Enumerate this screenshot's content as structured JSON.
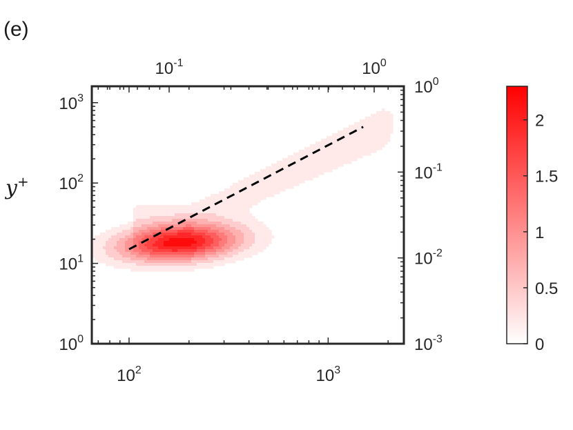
{
  "panel_label": "(e)",
  "chart_data": {
    "type": "heatmap",
    "subtype": "filled-contour",
    "ylabel": "y",
    "ylabel_superscript": "+",
    "x_scale": "log",
    "y_scale": "log",
    "xlim": [
      65,
      2400
    ],
    "ylim": [
      1,
      1600
    ],
    "x_ticks": [
      {
        "value": 100,
        "base": "10",
        "exp": "2"
      },
      {
        "value": 1000,
        "base": "10",
        "exp": "3"
      }
    ],
    "y_ticks": [
      {
        "value": 1,
        "base": "10",
        "exp": "0"
      },
      {
        "value": 10,
        "base": "10",
        "exp": "1"
      },
      {
        "value": 100,
        "base": "10",
        "exp": "2"
      },
      {
        "value": 1000,
        "base": "10",
        "exp": "3"
      }
    ],
    "top_axis": {
      "scale": "log",
      "ticks": [
        {
          "value": 0.1,
          "base": "10",
          "exp": "-1"
        },
        {
          "value": 1,
          "base": "10",
          "exp": "0"
        }
      ]
    },
    "right_axis": {
      "scale": "log",
      "ticks": [
        {
          "value": 0.001,
          "base": "10",
          "exp": "-3"
        },
        {
          "value": 0.01,
          "base": "10",
          "exp": "-2"
        },
        {
          "value": 0.1,
          "base": "10",
          "exp": "-1"
        },
        {
          "value": 1,
          "base": "10",
          "exp": "0"
        }
      ]
    },
    "colorbar": {
      "min": 0,
      "max": 2.3,
      "color_low": "#ffffff",
      "color_high": "#ff0000",
      "ticks": [
        {
          "value": 0,
          "label": "0"
        },
        {
          "value": 0.5,
          "label": "0.5"
        },
        {
          "value": 1,
          "label": "1"
        },
        {
          "value": 1.5,
          "label": "1.5"
        },
        {
          "value": 2,
          "label": "2"
        }
      ]
    },
    "peak": {
      "x": 180,
      "y": 18,
      "value": 2.3
    },
    "contour_levels": [
      0.2,
      0.45,
      0.7,
      0.95,
      1.2,
      1.45,
      1.7,
      1.95,
      2.2
    ],
    "dashed_line": {
      "x": [
        100,
        1500
      ],
      "y": [
        15,
        500
      ],
      "color": "#000000"
    }
  }
}
